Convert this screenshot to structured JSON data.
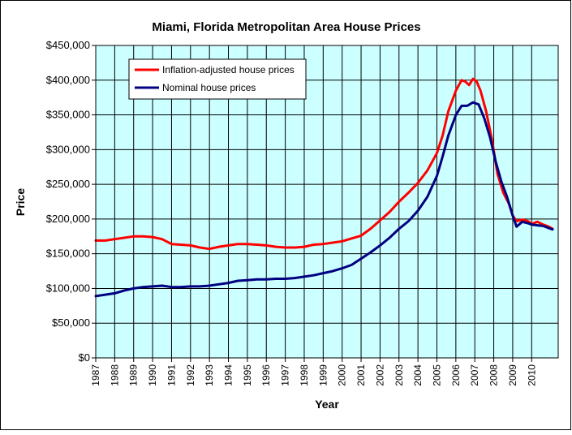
{
  "chart_data": {
    "type": "line",
    "title": "Miami, Florida Metropolitan Area House Prices",
    "xlabel": "Year",
    "ylabel": "Price",
    "ylim": [
      0,
      450000
    ],
    "xlim": [
      1987,
      2011.4
    ],
    "grid": true,
    "legend_position": "top-left",
    "x_ticks": [
      "1987",
      "1988",
      "1989",
      "1990",
      "1991",
      "1992",
      "1993",
      "1994",
      "1995",
      "1996",
      "1997",
      "1998",
      "1999",
      "2000",
      "2001",
      "2002",
      "2003",
      "2004",
      "2005",
      "2006",
      "2007",
      "2008",
      "2009",
      "2010"
    ],
    "y_ticks": [
      "$0",
      "$50,000",
      "$100,000",
      "$150,000",
      "$200,000",
      "$250,000",
      "$300,000",
      "$350,000",
      "$400,000",
      "$450,000"
    ],
    "y_tick_values": [
      0,
      50000,
      100000,
      150000,
      200000,
      250000,
      300000,
      350000,
      400000,
      450000
    ],
    "series": [
      {
        "name": "Inflation-adjusted house prices",
        "color": "#ff0000",
        "points": [
          [
            1987.0,
            169000
          ],
          [
            1987.5,
            169000
          ],
          [
            1988.0,
            171000
          ],
          [
            1988.5,
            173000
          ],
          [
            1989.0,
            175000
          ],
          [
            1989.5,
            175000
          ],
          [
            1990.0,
            174000
          ],
          [
            1990.5,
            171000
          ],
          [
            1991.0,
            164000
          ],
          [
            1991.5,
            163000
          ],
          [
            1992.0,
            162000
          ],
          [
            1992.5,
            159000
          ],
          [
            1993.0,
            157000
          ],
          [
            1993.5,
            160000
          ],
          [
            1994.0,
            162000
          ],
          [
            1994.5,
            164000
          ],
          [
            1995.0,
            164000
          ],
          [
            1995.5,
            163000
          ],
          [
            1996.0,
            162000
          ],
          [
            1996.5,
            160000
          ],
          [
            1997.0,
            159000
          ],
          [
            1997.5,
            159000
          ],
          [
            1998.0,
            160000
          ],
          [
            1998.5,
            163000
          ],
          [
            1999.0,
            164000
          ],
          [
            1999.5,
            166000
          ],
          [
            2000.0,
            168000
          ],
          [
            2000.5,
            172000
          ],
          [
            2001.0,
            176000
          ],
          [
            2001.5,
            186000
          ],
          [
            2002.0,
            198000
          ],
          [
            2002.5,
            210000
          ],
          [
            2003.0,
            225000
          ],
          [
            2003.5,
            238000
          ],
          [
            2004.0,
            252000
          ],
          [
            2004.5,
            270000
          ],
          [
            2005.0,
            295000
          ],
          [
            2005.3,
            320000
          ],
          [
            2005.6,
            355000
          ],
          [
            2006.0,
            385000
          ],
          [
            2006.3,
            400000
          ],
          [
            2006.5,
            398000
          ],
          [
            2006.7,
            393000
          ],
          [
            2006.9,
            402000
          ],
          [
            2007.1,
            398000
          ],
          [
            2007.3,
            385000
          ],
          [
            2007.6,
            355000
          ],
          [
            2007.9,
            315000
          ],
          [
            2008.2,
            265000
          ],
          [
            2008.5,
            238000
          ],
          [
            2008.8,
            222000
          ],
          [
            2009.0,
            205000
          ],
          [
            2009.2,
            197000
          ],
          [
            2009.5,
            199000
          ],
          [
            2009.8,
            197000
          ],
          [
            2010.0,
            193000
          ],
          [
            2010.3,
            196000
          ],
          [
            2010.6,
            192000
          ],
          [
            2010.9,
            189000
          ],
          [
            2011.1,
            186000
          ]
        ]
      },
      {
        "name": "Nominal house prices",
        "color": "#000080",
        "points": [
          [
            1987.0,
            89000
          ],
          [
            1987.5,
            91000
          ],
          [
            1988.0,
            93000
          ],
          [
            1988.5,
            97000
          ],
          [
            1989.0,
            100000
          ],
          [
            1989.5,
            102000
          ],
          [
            1990.0,
            103000
          ],
          [
            1990.5,
            104000
          ],
          [
            1991.0,
            102000
          ],
          [
            1991.5,
            102000
          ],
          [
            1992.0,
            103000
          ],
          [
            1992.5,
            103000
          ],
          [
            1993.0,
            104000
          ],
          [
            1993.5,
            106000
          ],
          [
            1994.0,
            108000
          ],
          [
            1994.5,
            111000
          ],
          [
            1995.0,
            112000
          ],
          [
            1995.5,
            113000
          ],
          [
            1996.0,
            113000
          ],
          [
            1996.5,
            114000
          ],
          [
            1997.0,
            114000
          ],
          [
            1997.5,
            115000
          ],
          [
            1998.0,
            117000
          ],
          [
            1998.5,
            119000
          ],
          [
            1999.0,
            122000
          ],
          [
            1999.5,
            125000
          ],
          [
            2000.0,
            129000
          ],
          [
            2000.5,
            134000
          ],
          [
            2001.0,
            143000
          ],
          [
            2001.5,
            152000
          ],
          [
            2002.0,
            162000
          ],
          [
            2002.5,
            173000
          ],
          [
            2003.0,
            186000
          ],
          [
            2003.5,
            197000
          ],
          [
            2004.0,
            212000
          ],
          [
            2004.5,
            232000
          ],
          [
            2005.0,
            262000
          ],
          [
            2005.3,
            290000
          ],
          [
            2005.6,
            320000
          ],
          [
            2006.0,
            350000
          ],
          [
            2006.3,
            363000
          ],
          [
            2006.6,
            363000
          ],
          [
            2006.9,
            368000
          ],
          [
            2007.2,
            365000
          ],
          [
            2007.5,
            345000
          ],
          [
            2007.8,
            318000
          ],
          [
            2008.1,
            283000
          ],
          [
            2008.4,
            254000
          ],
          [
            2008.7,
            232000
          ],
          [
            2009.0,
            205000
          ],
          [
            2009.2,
            189000
          ],
          [
            2009.5,
            196000
          ],
          [
            2009.8,
            194000
          ],
          [
            2010.0,
            192000
          ],
          [
            2010.3,
            191000
          ],
          [
            2010.6,
            190000
          ],
          [
            2010.9,
            187000
          ],
          [
            2011.1,
            185000
          ]
        ]
      }
    ]
  }
}
